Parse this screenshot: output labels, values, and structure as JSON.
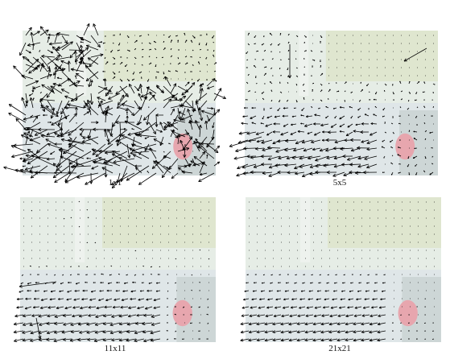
{
  "figure": {
    "panels": [
      {
        "id": "p1",
        "label": "1x1",
        "scale": 1,
        "noise": 1.0,
        "arrow_len": 1.0
      },
      {
        "id": "p2",
        "label": "5x5",
        "scale": 5,
        "noise": 0.35,
        "arrow_len": 0.55
      },
      {
        "id": "p3",
        "label": "11x11",
        "scale": 11,
        "noise": 0.15,
        "arrow_len": 0.45
      },
      {
        "id": "p4",
        "label": "21x21",
        "scale": 21,
        "noise": 0.05,
        "arrow_len": 0.4
      }
    ],
    "colors": {
      "sky": "#e6ede6",
      "foliage": "#dfe6cf",
      "road": "#dfe6e8",
      "car_dark": "#cdd6d6",
      "car_red": "#e7a6ae",
      "arrow": "#000000"
    }
  }
}
